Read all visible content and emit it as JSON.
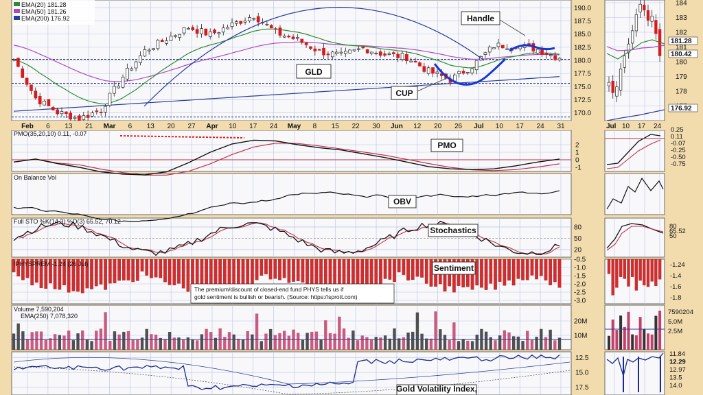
{
  "chart_data": {
    "type": "line",
    "title": "",
    "subtitle": "",
    "main_panel": {
      "legend": [
        {
          "name": "EMA(20) 181.28",
          "color": "#2e8b2e"
        },
        {
          "name": "EMA(50) 181.26",
          "color": "#a94bbf"
        },
        {
          "name": "EMA(200) 176.92",
          "color": "#2a3c9e"
        }
      ],
      "y_ticks": [
        "190.0",
        "187.5",
        "185.0",
        "182.5",
        "180.0",
        "177.5",
        "175.0",
        "172.5",
        "170.0"
      ],
      "ylim": [
        168.5,
        191.5
      ],
      "annotations": {
        "symbol": "GLD",
        "cup": "CUP",
        "handle": "Handle"
      },
      "close_weekly": [
        180.2,
        172.8,
        170.1,
        168.9,
        170.6,
        176.9,
        181.8,
        184.1,
        186.3,
        184.9,
        186.8,
        188.6,
        185.3,
        183.9,
        181.7,
        180.9,
        182.3,
        181.1,
        180.6,
        177.9,
        176.3,
        178.9,
        182.8,
        182.9,
        182.1,
        180.4
      ]
    },
    "x_ticks": [
      "Feb",
      "6",
      "13",
      "21",
      "Mar",
      "6",
      "13",
      "20",
      "27",
      "Apr",
      "10",
      "17",
      "24",
      "May",
      "8",
      "15",
      "22",
      "30",
      "Jun",
      "12",
      "20",
      "26",
      "Jul",
      "10",
      "17",
      "24",
      "31"
    ],
    "indicators": [
      {
        "name": "PMO(35,20,10) 0.11, -0.07",
        "label": "PMO",
        "y_ticks": [
          "2",
          "1",
          "0",
          "-1"
        ]
      },
      {
        "name": "On Balance Vol",
        "label": "OBV"
      },
      {
        "name": "Full STO %K(14,3) %D(3) 65.52, 70.12",
        "label": "Stochastics",
        "y_ticks": [
          "80",
          "50",
          "20"
        ]
      },
      {
        "name": "!PHYSPREM -1.24 (26 Jul)",
        "label": "Sentiment",
        "y_ticks": [
          "-0.5",
          "-1.0",
          "-1.5",
          "-2.0",
          "-2.5",
          "-3.0"
        ]
      },
      {
        "name": "Volume 7,590,204",
        "name2": "EMA(250) 7,078,320",
        "y_ticks": [
          "20M",
          "10M"
        ]
      },
      {
        "name": "",
        "label": "Gold Volatility Index,",
        "y_ticks": [
          "12.5",
          "15.0",
          "17.5"
        ]
      }
    ],
    "note": "The premium/discount of closed-end fund PHYS tells us if gold sentiment is bullish or bearish. (Source: https://sprott.com)",
    "note_lines": [
      "The premium/discount of closed-end fund PHYS tells us if",
      "gold sentiment is bullish or bearish. (Source: https://sprott.com)"
    ],
    "side_panel": {
      "x_ticks": [
        "Jul",
        "10",
        "17",
        "24"
      ],
      "price_ticks": [
        "184",
        "183",
        "182",
        "181",
        "180",
        "179",
        "178",
        "177"
      ],
      "price_badge": "180.42",
      "ema20_badge": "181.28",
      "ema200_badge": "176.92",
      "pmo_ticks": [
        "0.25",
        "0.11",
        "-0.07",
        "-0.25",
        "-0.50",
        "-0.75"
      ],
      "sto_ticks": [
        "80",
        "65.52",
        "50"
      ],
      "sent_ticks": [
        "-1.24",
        "-1.4",
        "-1.6",
        "-1.8"
      ],
      "vol_ticks": [
        "7590204",
        "5.0M",
        "2.5M"
      ],
      "vix_ticks": [
        "11.84",
        "12.29",
        "12.97",
        "13.5",
        "14.0"
      ]
    }
  },
  "colors": {
    "up": "#1a8a2a",
    "down": "#d81a1a",
    "pmo_signal": "#c0304a",
    "panel_bg": "#f8f8fb",
    "grid": "#b9c3dc"
  }
}
